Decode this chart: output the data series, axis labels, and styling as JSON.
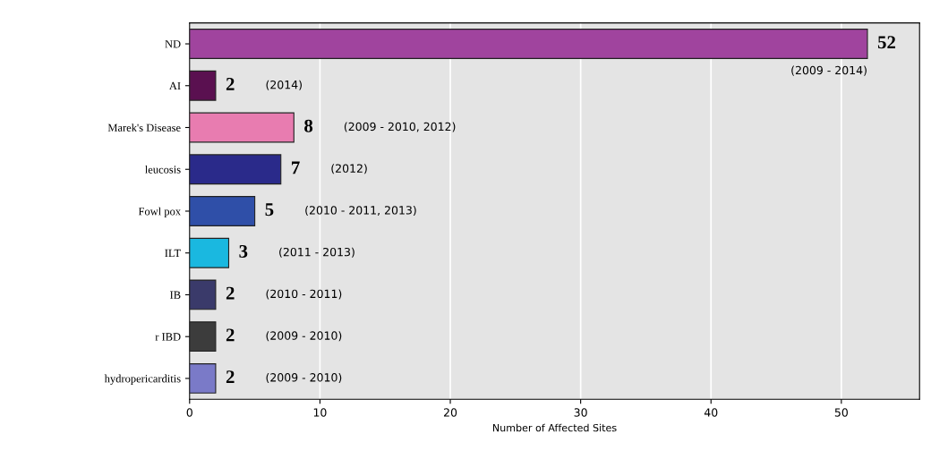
{
  "chart_data": {
    "type": "bar",
    "orientation": "horizontal",
    "xlabel": "Number of Affected Sites",
    "categories": [
      "ND",
      "AI",
      "Marek's Disease",
      "leucosis",
      "Fowl pox",
      "ILT",
      "IB",
      "r IBD",
      "hydropericarditis"
    ],
    "values": [
      52,
      2,
      8,
      7,
      5,
      3,
      2,
      2,
      2
    ],
    "colors": [
      "#a0449e",
      "#5a1050",
      "#e87cb0",
      "#2a2a8a",
      "#2f4fa8",
      "#1ab8e0",
      "#3a3a6a",
      "#3c3c3c",
      "#7a7ac8"
    ],
    "data_labels": true,
    "xlim": [
      0,
      56
    ],
    "xticks": [
      0,
      10,
      20,
      30,
      40,
      50
    ],
    "grid": "x",
    "annotations": [
      "(2009 - 2014)",
      "(2014)",
      "(2009 - 2010, 2012)",
      "(2012)",
      "(2010 - 2011, 2013)",
      "(2011 - 2013)",
      "(2010 - 2011)",
      "(2009 - 2010)",
      "(2009 - 2010)"
    ]
  }
}
